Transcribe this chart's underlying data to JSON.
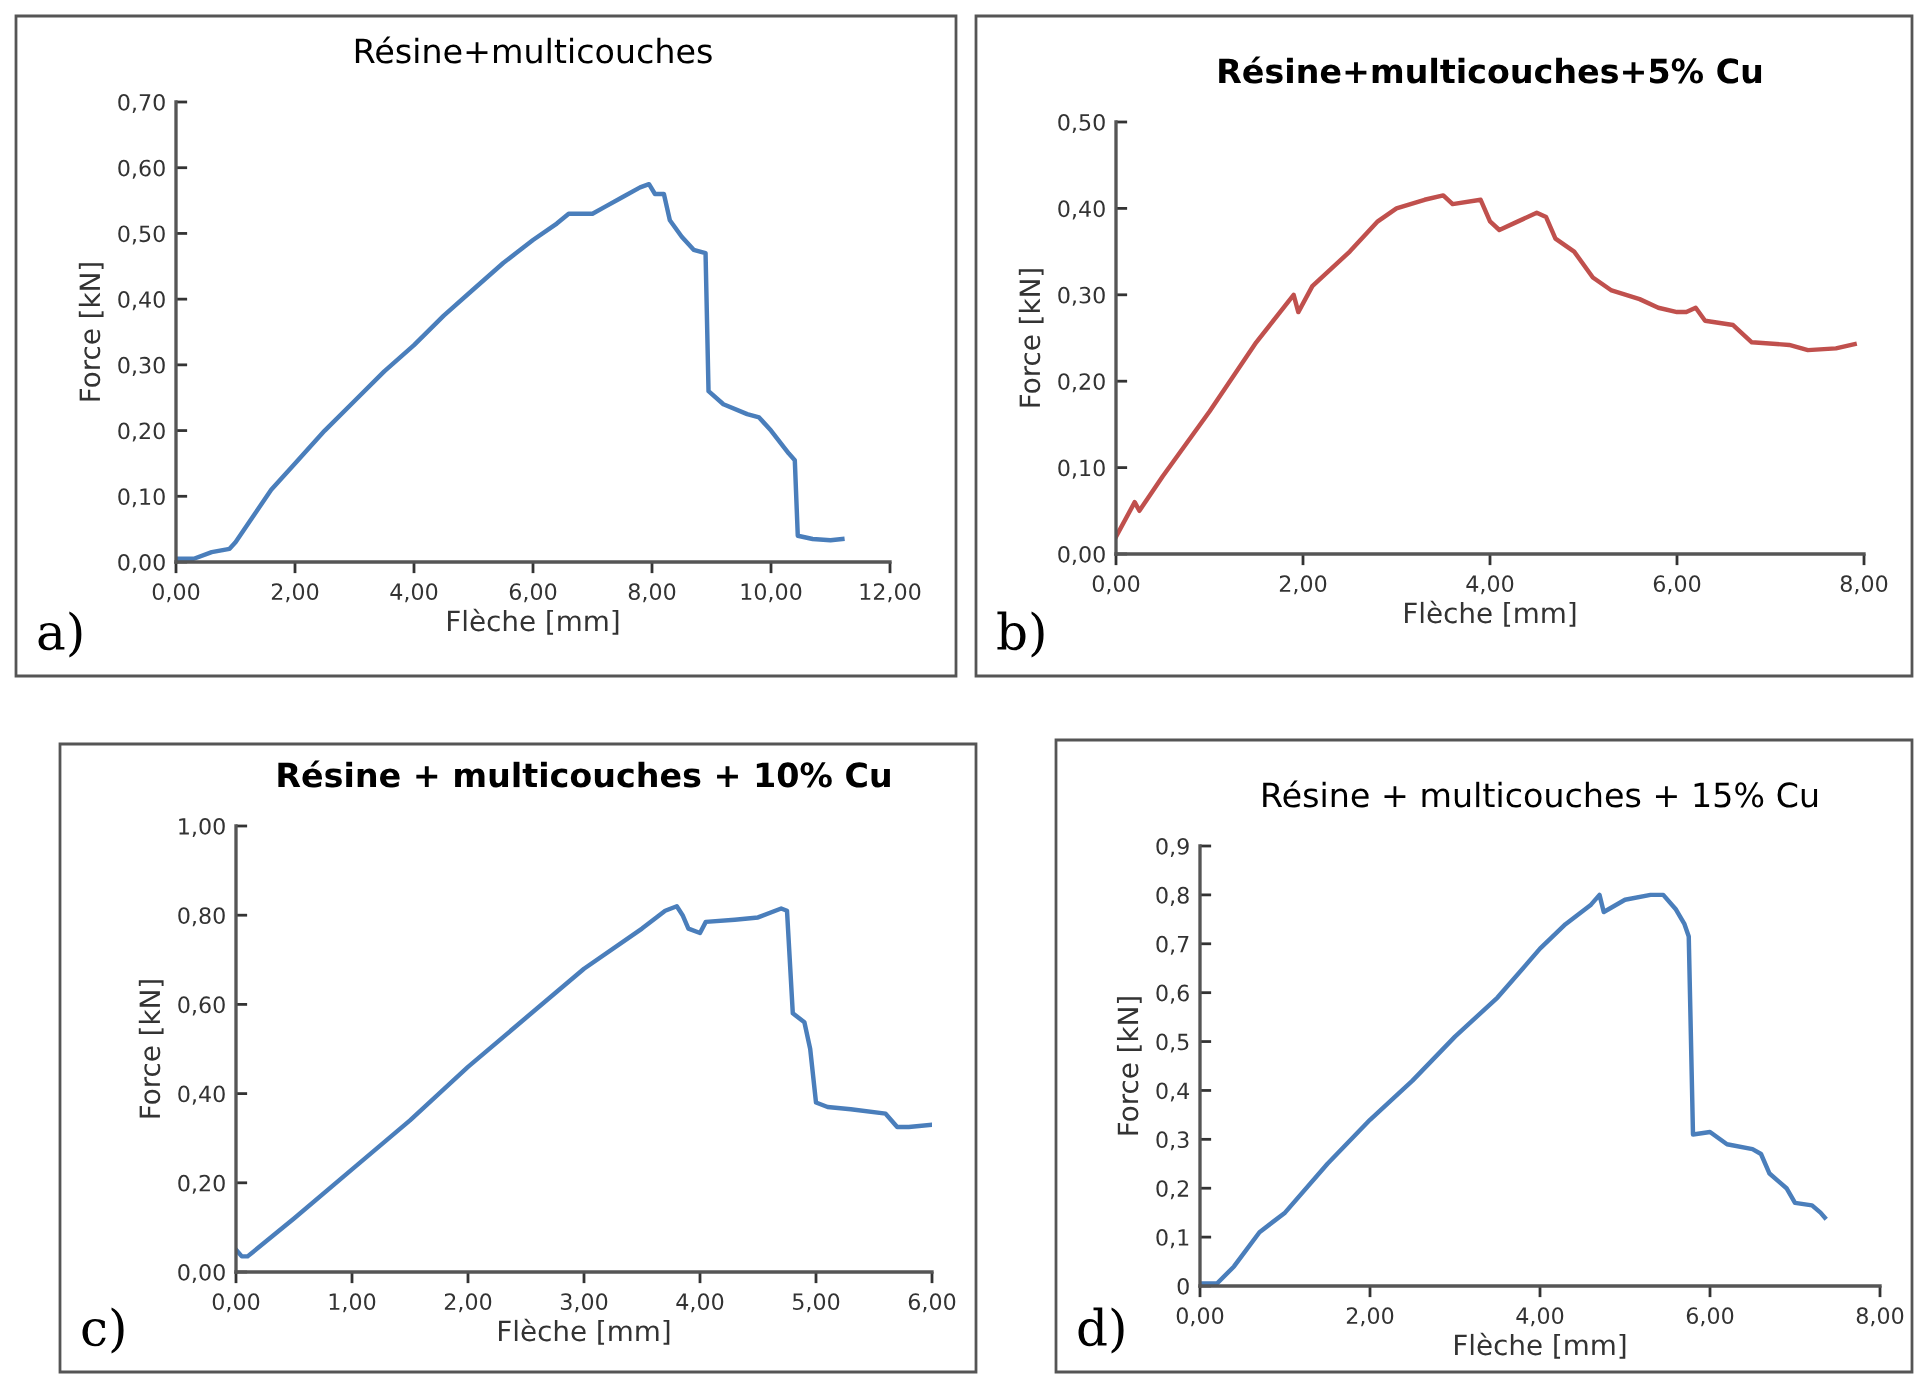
{
  "chart_data": [
    {
      "type": "line",
      "title": "Résine+multicouches",
      "xlabel": "Flèche [mm]",
      "ylabel": "Force [kN]",
      "annotations": [
        "a)"
      ],
      "xlim": [
        0,
        12
      ],
      "ylim": [
        0,
        0.7
      ],
      "xticks": [
        {
          "value": 0,
          "label": "0,00"
        },
        {
          "value": 2,
          "label": "2,00"
        },
        {
          "value": 4,
          "label": "4,00"
        },
        {
          "value": 6,
          "label": "6,00"
        },
        {
          "value": 8,
          "label": "8,00"
        },
        {
          "value": 10,
          "label": "10,00"
        },
        {
          "value": 12,
          "label": "12,00"
        }
      ],
      "yticks": [
        {
          "value": 0,
          "label": "0,00"
        },
        {
          "value": 0.1,
          "label": "0,10"
        },
        {
          "value": 0.2,
          "label": "0,20"
        },
        {
          "value": 0.3,
          "label": "0,30"
        },
        {
          "value": 0.4,
          "label": "0,40"
        },
        {
          "value": 0.5,
          "label": "0,50"
        },
        {
          "value": 0.6,
          "label": "0,60"
        },
        {
          "value": 0.7,
          "label": "0,70"
        }
      ],
      "grid": false,
      "legend": false,
      "series": [
        {
          "color": "#4a7ebb",
          "x": [
            0,
            0.3,
            0.6,
            0.9,
            1.0,
            1.3,
            1.6,
            2.0,
            2.5,
            3.0,
            3.5,
            4.0,
            4.5,
            5.0,
            5.5,
            6.0,
            6.4,
            6.6,
            7.0,
            7.2,
            7.5,
            7.8,
            7.95,
            8.05,
            8.2,
            8.3,
            8.5,
            8.7,
            8.9,
            8.95,
            9.2,
            9.6,
            9.8,
            10.0,
            10.3,
            10.4,
            10.45,
            10.7,
            11.0,
            11.2
          ],
          "values": [
            0.005,
            0.005,
            0.015,
            0.02,
            0.03,
            0.07,
            0.11,
            0.15,
            0.2,
            0.245,
            0.29,
            0.33,
            0.375,
            0.415,
            0.455,
            0.49,
            0.515,
            0.53,
            0.53,
            0.54,
            0.555,
            0.57,
            0.575,
            0.56,
            0.56,
            0.52,
            0.495,
            0.475,
            0.47,
            0.26,
            0.24,
            0.225,
            0.22,
            0.2,
            0.165,
            0.155,
            0.04,
            0.035,
            0.033,
            0.035
          ]
        }
      ]
    },
    {
      "type": "line",
      "title": "Résine+multicouches+5% Cu",
      "xlabel": "Flèche [mm]",
      "ylabel": "Force [kN]",
      "annotations": [
        "b)"
      ],
      "xlim": [
        0,
        8
      ],
      "ylim": [
        0,
        0.5
      ],
      "xticks": [
        {
          "value": 0,
          "label": "0,00"
        },
        {
          "value": 2,
          "label": "2,00"
        },
        {
          "value": 4,
          "label": "4,00"
        },
        {
          "value": 6,
          "label": "6,00"
        },
        {
          "value": 8,
          "label": "8,00"
        }
      ],
      "yticks": [
        {
          "value": 0,
          "label": "0,00"
        },
        {
          "value": 0.1,
          "label": "0,10"
        },
        {
          "value": 0.2,
          "label": "0,20"
        },
        {
          "value": 0.3,
          "label": "0,30"
        },
        {
          "value": 0.4,
          "label": "0,40"
        },
        {
          "value": 0.5,
          "label": "0,50"
        }
      ],
      "grid": false,
      "legend": false,
      "series": [
        {
          "color": "#c0504d",
          "x": [
            0,
            0.2,
            0.25,
            0.5,
            1.0,
            1.5,
            1.9,
            1.95,
            2.1,
            2.3,
            2.5,
            2.8,
            3.0,
            3.3,
            3.5,
            3.6,
            3.9,
            4.0,
            4.1,
            4.3,
            4.5,
            4.6,
            4.7,
            4.9,
            5.1,
            5.3,
            5.6,
            5.8,
            6.0,
            6.1,
            6.2,
            6.3,
            6.6,
            6.8,
            7.2,
            7.4,
            7.7,
            7.9
          ],
          "values": [
            0.02,
            0.06,
            0.05,
            0.09,
            0.165,
            0.245,
            0.3,
            0.28,
            0.31,
            0.33,
            0.35,
            0.385,
            0.4,
            0.41,
            0.415,
            0.405,
            0.41,
            0.385,
            0.375,
            0.385,
            0.395,
            0.39,
            0.365,
            0.35,
            0.32,
            0.305,
            0.295,
            0.285,
            0.28,
            0.28,
            0.285,
            0.27,
            0.265,
            0.245,
            0.242,
            0.236,
            0.238,
            0.243
          ]
        }
      ]
    },
    {
      "type": "line",
      "title": "Résine + multicouches + 10% Cu",
      "xlabel": "Flèche [mm]",
      "ylabel": "Force [kN]",
      "annotations": [
        "c)"
      ],
      "xlim": [
        0,
        6
      ],
      "ylim": [
        0,
        1
      ],
      "xticks": [
        {
          "value": 0,
          "label": "0,00"
        },
        {
          "value": 1,
          "label": "1,00"
        },
        {
          "value": 2,
          "label": "2,00"
        },
        {
          "value": 3,
          "label": "3,00"
        },
        {
          "value": 4,
          "label": "4,00"
        },
        {
          "value": 5,
          "label": "5,00"
        },
        {
          "value": 6,
          "label": "6,00"
        }
      ],
      "yticks": [
        {
          "value": 0,
          "label": "0,00"
        },
        {
          "value": 0.2,
          "label": "0,20"
        },
        {
          "value": 0.4,
          "label": "0,40"
        },
        {
          "value": 0.6,
          "label": "0,60"
        },
        {
          "value": 0.8,
          "label": "0,80"
        },
        {
          "value": 1,
          "label": "1,00"
        }
      ],
      "grid": false,
      "legend": false,
      "series": [
        {
          "color": "#4a7ebb",
          "x": [
            0,
            0.05,
            0.1,
            0.5,
            1.0,
            1.5,
            2.0,
            2.5,
            3.0,
            3.5,
            3.7,
            3.8,
            3.85,
            3.9,
            4.0,
            4.05,
            4.3,
            4.5,
            4.7,
            4.75,
            4.8,
            4.9,
            4.95,
            5.0,
            5.1,
            5.3,
            5.6,
            5.7,
            5.8,
            6.0
          ],
          "values": [
            0.05,
            0.035,
            0.035,
            0.12,
            0.23,
            0.34,
            0.46,
            0.57,
            0.68,
            0.77,
            0.81,
            0.82,
            0.8,
            0.77,
            0.76,
            0.785,
            0.79,
            0.795,
            0.815,
            0.81,
            0.58,
            0.56,
            0.5,
            0.38,
            0.37,
            0.365,
            0.355,
            0.325,
            0.325,
            0.33
          ]
        }
      ]
    },
    {
      "type": "line",
      "title": "Résine + multicouches + 15% Cu",
      "xlabel": "Flèche [mm]",
      "ylabel": "Force [kN]",
      "annotations": [
        "d)"
      ],
      "xlim": [
        0,
        8
      ],
      "ylim": [
        0,
        0.9
      ],
      "xticks": [
        {
          "value": 0,
          "label": "0,00"
        },
        {
          "value": 2,
          "label": "2,00"
        },
        {
          "value": 4,
          "label": "4,00"
        },
        {
          "value": 6,
          "label": "6,00"
        },
        {
          "value": 8,
          "label": "8,00"
        }
      ],
      "yticks": [
        0,
        {
          "value": 0.1,
          "label": "0,1"
        },
        {
          "value": 0.2,
          "label": "0,2"
        },
        {
          "value": 0.3,
          "label": "0,3"
        },
        {
          "value": 0.4,
          "label": "0,4"
        },
        {
          "value": 0.5,
          "label": "0,5"
        },
        {
          "value": 0.6,
          "label": "0,6"
        },
        {
          "value": 0.7,
          "label": "0,7"
        },
        {
          "value": 0.8,
          "label": "0,8"
        },
        {
          "value": 0.9,
          "label": "0,9"
        }
      ],
      "grid": false,
      "legend": false,
      "series": [
        {
          "color": "#4a7ebb",
          "x": [
            0,
            0.2,
            0.4,
            0.7,
            1.0,
            1.5,
            2.0,
            2.5,
            3.0,
            3.5,
            4.0,
            4.3,
            4.6,
            4.7,
            4.75,
            5.0,
            5.3,
            5.45,
            5.6,
            5.7,
            5.75,
            5.8,
            6.0,
            6.2,
            6.5,
            6.6,
            6.7,
            6.9,
            7.0,
            7.2,
            7.3,
            7.35
          ],
          "values": [
            0.005,
            0.005,
            0.04,
            0.11,
            0.15,
            0.25,
            0.34,
            0.42,
            0.51,
            0.59,
            0.69,
            0.74,
            0.78,
            0.8,
            0.765,
            0.79,
            0.8,
            0.8,
            0.77,
            0.74,
            0.715,
            0.31,
            0.315,
            0.29,
            0.28,
            0.27,
            0.23,
            0.2,
            0.17,
            0.165,
            0.15,
            0.14
          ]
        }
      ]
    }
  ]
}
